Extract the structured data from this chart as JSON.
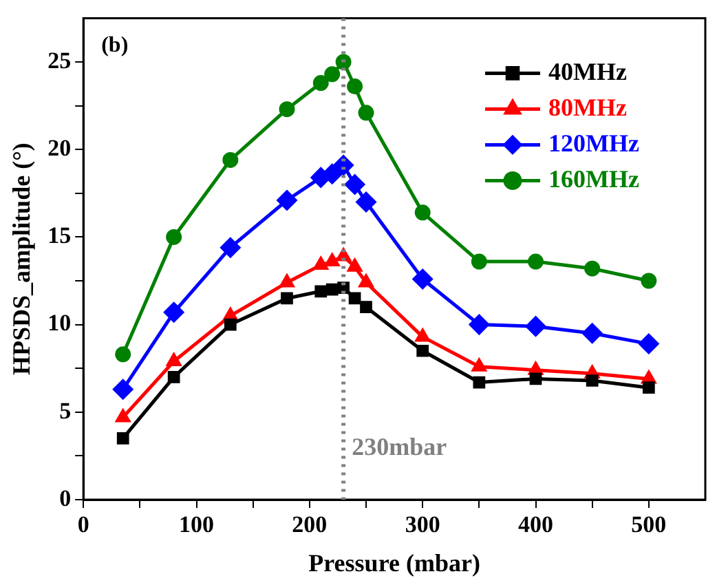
{
  "chart_data": {
    "type": "line",
    "xlabel": "Pressure (mbar)",
    "ylabel": "HPSDS_amplitude (°)",
    "x": [
      35,
      80,
      130,
      180,
      210,
      220,
      230,
      240,
      250,
      300,
      350,
      400,
      450,
      500
    ],
    "series": [
      {
        "name": "40MHz",
        "color": "#000000",
        "marker": "square",
        "values": [
          3.5,
          7.0,
          10.0,
          11.5,
          11.9,
          12.0,
          12.1,
          11.5,
          11.0,
          8.5,
          6.7,
          6.9,
          6.8,
          6.4
        ]
      },
      {
        "name": "80MHz",
        "color": "#ff0000",
        "marker": "triangle",
        "values": [
          4.7,
          7.9,
          10.5,
          12.4,
          13.4,
          13.6,
          13.9,
          13.3,
          12.4,
          9.3,
          7.6,
          7.4,
          7.2,
          6.9
        ]
      },
      {
        "name": "120MHz",
        "color": "#0000ff",
        "marker": "diamond",
        "values": [
          6.3,
          10.7,
          14.4,
          17.1,
          18.4,
          18.6,
          19.1,
          18.0,
          17.0,
          12.6,
          10.0,
          9.9,
          9.5,
          8.9
        ]
      },
      {
        "name": "160MHz",
        "color": "#008000",
        "marker": "circle",
        "values": [
          8.3,
          15.0,
          19.4,
          22.3,
          23.8,
          24.3,
          25.0,
          23.6,
          22.1,
          16.4,
          13.6,
          13.6,
          13.2,
          12.5
        ]
      }
    ],
    "xlim": [
      0,
      550
    ],
    "xticks": [
      0,
      {
        "value": 50,
        "label": null
      },
      100,
      {
        "value": 150,
        "label": null
      },
      200,
      {
        "value": 250,
        "label": null
      },
      300,
      {
        "value": 350,
        "label": null
      },
      400,
      {
        "value": 450,
        "label": null
      },
      500
    ],
    "ylim": [
      0,
      27.5
    ],
    "yticks": [
      0,
      {
        "value": 2.5,
        "label": null
      },
      5,
      {
        "value": 7.5,
        "label": null
      },
      10,
      {
        "value": 12.5,
        "label": null
      },
      15,
      {
        "value": 17.5,
        "label": null
      },
      20,
      {
        "value": 22.5,
        "label": null
      },
      25
    ],
    "ref_lines": [
      {
        "axis": "x",
        "value": 230,
        "label": "230mbar",
        "color": "#808080",
        "line_style": "dotted"
      }
    ],
    "annotations": [
      "(b)"
    ],
    "legend": "top right",
    "grid": false,
    "line_style": "solid"
  }
}
